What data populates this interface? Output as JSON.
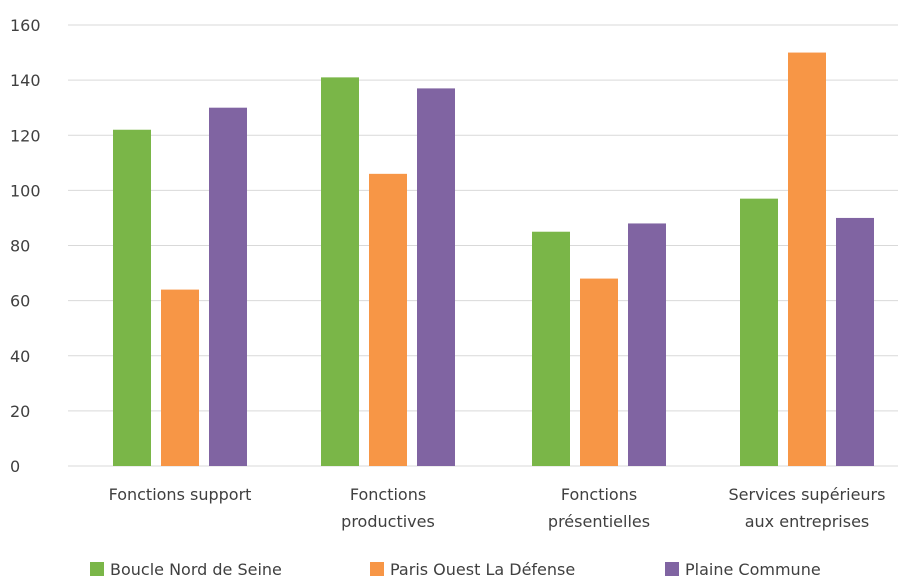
{
  "chart_data": {
    "type": "bar",
    "categories": [
      [
        "Fonctions support"
      ],
      [
        "Fonctions",
        "productives"
      ],
      [
        "Fonctions",
        "présentielles"
      ],
      [
        "Services supérieurs",
        "aux entreprises"
      ]
    ],
    "series": [
      {
        "name": "Boucle Nord de Seine",
        "color": "#7ab648",
        "values": [
          122,
          141,
          85,
          97
        ]
      },
      {
        "name": "Paris Ouest La Défense",
        "color": "#f79646",
        "values": [
          64,
          106,
          68,
          150
        ]
      },
      {
        "name": "Plaine Commune",
        "color": "#8064a2",
        "values": [
          130,
          137,
          88,
          90
        ]
      }
    ],
    "y_ticks": [
      "0",
      "20",
      "40",
      "60",
      "80",
      "100",
      "120",
      "140",
      "160"
    ],
    "ylim": [
      0,
      160
    ],
    "grid": true,
    "legend_position": "bottom"
  }
}
